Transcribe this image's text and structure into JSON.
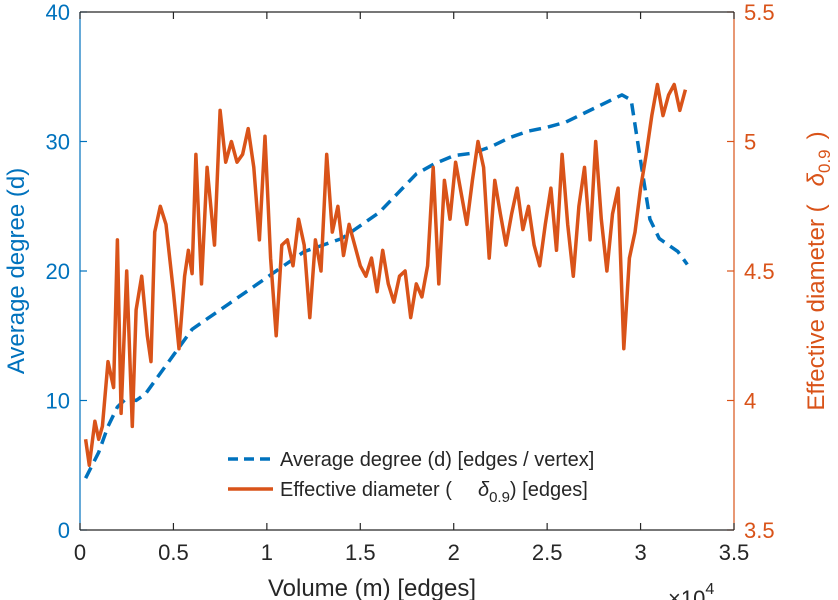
{
  "chart_data": {
    "type": "line",
    "title": "",
    "xlabel": "Volume (m) [edges]",
    "x_exponent_base": "×10",
    "x_exponent_power": "4",
    "ylabel_left": "Average degree (d)",
    "ylabel_right_prefix": "Effective diameter (",
    "ylabel_right_symbol": "δ",
    "ylabel_right_subscript": "0.9",
    "ylabel_right_suffix": ")",
    "xlim": [
      0,
      3.5
    ],
    "ylim_left": [
      0,
      40
    ],
    "ylim_right": [
      3.5,
      5.5
    ],
    "xticks": [
      "0",
      "0.5",
      "1",
      "1.5",
      "2",
      "2.5",
      "3",
      "3.5"
    ],
    "yticks_left": [
      "0",
      "10",
      "20",
      "30",
      "40"
    ],
    "yticks_right": [
      "3.5",
      "4",
      "4.5",
      "5",
      "5.5"
    ],
    "grid": false,
    "legend_position": "bottom-center",
    "colors": {
      "left_axis": "#0072BD",
      "right_axis": "#D95319"
    },
    "series": [
      {
        "name": "Average degree (d) [edges / vertex]",
        "axis": "left",
        "style": "dashed",
        "color": "#0072BD",
        "x": [
          0.03,
          0.1,
          0.15,
          0.2,
          0.25,
          0.3,
          0.35,
          0.4,
          0.5,
          0.6,
          0.7,
          0.8,
          0.9,
          1.0,
          1.1,
          1.2,
          1.3,
          1.4,
          1.5,
          1.6,
          1.7,
          1.8,
          1.9,
          2.0,
          2.1,
          2.2,
          2.3,
          2.4,
          2.5,
          2.6,
          2.7,
          2.8,
          2.9,
          2.95,
          3.0,
          3.05,
          3.1,
          3.2,
          3.25
        ],
        "y": [
          4,
          6,
          8,
          9.5,
          10.2,
          10,
          10.5,
          11.5,
          13.5,
          15.5,
          16.5,
          17.5,
          18.5,
          19.5,
          20.5,
          21.5,
          22,
          22.5,
          23.5,
          24.5,
          26,
          27.5,
          28.3,
          28.9,
          29.1,
          29.6,
          30.3,
          30.8,
          31.1,
          31.5,
          32.2,
          32.9,
          33.6,
          33.2,
          28.5,
          24,
          22.5,
          21.5,
          20.5
        ]
      },
      {
        "name": "Effective diameter (δ₀.₉) [edges]",
        "legend_prefix": "Effective diameter (",
        "legend_symbol": "δ",
        "legend_subscript": "0.9",
        "legend_suffix": ") [edges]",
        "axis": "right",
        "style": "solid",
        "color": "#D95319",
        "x": [
          0.03,
          0.05,
          0.08,
          0.1,
          0.12,
          0.15,
          0.18,
          0.2,
          0.22,
          0.25,
          0.28,
          0.3,
          0.33,
          0.36,
          0.38,
          0.4,
          0.43,
          0.46,
          0.5,
          0.53,
          0.56,
          0.58,
          0.6,
          0.62,
          0.65,
          0.68,
          0.7,
          0.72,
          0.75,
          0.78,
          0.81,
          0.84,
          0.87,
          0.9,
          0.93,
          0.96,
          0.99,
          1.02,
          1.05,
          1.08,
          1.11,
          1.14,
          1.17,
          1.2,
          1.23,
          1.26,
          1.29,
          1.32,
          1.35,
          1.38,
          1.41,
          1.44,
          1.47,
          1.5,
          1.53,
          1.56,
          1.59,
          1.62,
          1.65,
          1.68,
          1.71,
          1.74,
          1.77,
          1.8,
          1.83,
          1.86,
          1.89,
          1.92,
          1.95,
          1.98,
          2.01,
          2.04,
          2.07,
          2.1,
          2.13,
          2.16,
          2.19,
          2.22,
          2.25,
          2.28,
          2.31,
          2.34,
          2.37,
          2.4,
          2.43,
          2.46,
          2.49,
          2.52,
          2.55,
          2.58,
          2.61,
          2.64,
          2.67,
          2.7,
          2.73,
          2.76,
          2.79,
          2.82,
          2.85,
          2.88,
          2.91,
          2.94,
          2.97,
          3.0,
          3.03,
          3.06,
          3.09,
          3.12,
          3.15,
          3.18,
          3.21,
          3.24
        ],
        "y": [
          3.85,
          3.75,
          3.92,
          3.85,
          3.9,
          4.15,
          4.05,
          4.62,
          3.95,
          4.5,
          3.9,
          4.35,
          4.48,
          4.25,
          4.15,
          4.65,
          4.75,
          4.68,
          4.42,
          4.2,
          4.48,
          4.58,
          4.49,
          4.95,
          4.45,
          4.9,
          4.75,
          4.6,
          5.12,
          4.92,
          5.0,
          4.92,
          4.95,
          5.05,
          4.9,
          4.62,
          5.02,
          4.55,
          4.25,
          4.6,
          4.62,
          4.52,
          4.7,
          4.6,
          4.32,
          4.62,
          4.5,
          4.95,
          4.65,
          4.75,
          4.56,
          4.68,
          4.6,
          4.52,
          4.48,
          4.55,
          4.42,
          4.58,
          4.45,
          4.38,
          4.48,
          4.5,
          4.32,
          4.45,
          4.4,
          4.52,
          4.9,
          4.45,
          4.85,
          4.7,
          4.92,
          4.8,
          4.68,
          4.85,
          5.0,
          4.9,
          4.55,
          4.85,
          4.72,
          4.6,
          4.72,
          4.82,
          4.66,
          4.75,
          4.6,
          4.52,
          4.68,
          4.82,
          4.58,
          4.95,
          4.68,
          4.48,
          4.75,
          4.9,
          4.62,
          5.0,
          4.7,
          4.5,
          4.72,
          4.82,
          4.2,
          4.55,
          4.65,
          4.82,
          4.95,
          5.1,
          5.22,
          5.1,
          5.18,
          5.22,
          5.12,
          5.2
        ]
      }
    ]
  }
}
